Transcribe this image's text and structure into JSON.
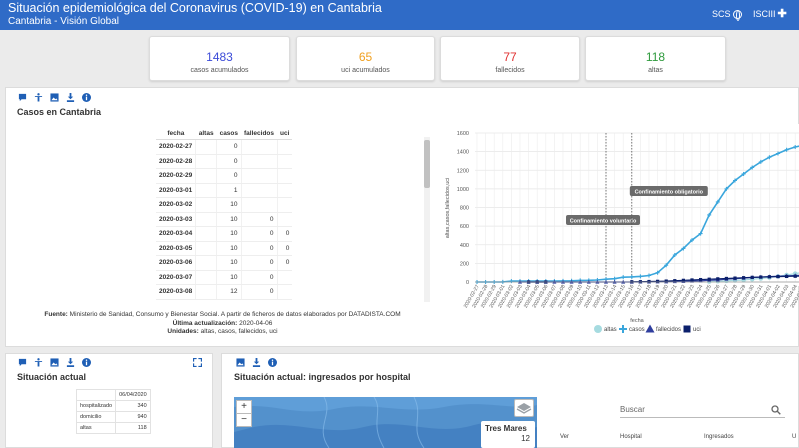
{
  "header": {
    "title": "Situación epidemiológica del Coronavirus (COVID-19) en Cantabria",
    "subtitle": "Cantabria - Visión Global",
    "links": [
      {
        "label": "SCS",
        "icon": "globe-icon"
      },
      {
        "label": "ISCIII",
        "icon": "plus-icon"
      }
    ],
    "color": "#2f6bc7"
  },
  "kpis": [
    {
      "value": "1483",
      "label": "casos acumulados",
      "color": "#3b4bd8"
    },
    {
      "value": "65",
      "label": "uci acumulados",
      "color": "#f0a020"
    },
    {
      "value": "77",
      "label": "fallecidos",
      "color": "#e03030"
    },
    {
      "value": "118",
      "label": "altas",
      "color": "#2e9a3c"
    }
  ],
  "panel_casos": {
    "title": "Casos en Cantabria",
    "icons": [
      "comment-icon",
      "accessibility-icon",
      "image-icon",
      "download-icon",
      "info-icon"
    ],
    "table": {
      "columns": [
        "fecha",
        "altas",
        "casos",
        "fallecidos",
        "uci"
      ],
      "rows": [
        [
          "2020-02-27",
          "",
          "0",
          "",
          ""
        ],
        [
          "2020-02-28",
          "",
          "0",
          "",
          ""
        ],
        [
          "2020-02-29",
          "",
          "0",
          "",
          ""
        ],
        [
          "2020-03-01",
          "",
          "1",
          "",
          ""
        ],
        [
          "2020-03-02",
          "",
          "10",
          "",
          ""
        ],
        [
          "2020-03-03",
          "",
          "10",
          "0",
          ""
        ],
        [
          "2020-03-04",
          "",
          "10",
          "0",
          "0"
        ],
        [
          "2020-03-05",
          "",
          "10",
          "0",
          "0"
        ],
        [
          "2020-03-06",
          "",
          "10",
          "0",
          "0"
        ],
        [
          "2020-03-07",
          "",
          "10",
          "0",
          ""
        ],
        [
          "2020-03-08",
          "",
          "12",
          "0",
          ""
        ]
      ]
    },
    "source": {
      "fuente_label": "Fuente:",
      "fuente": "Ministerio de Sanidad, Consumo y Bienestar Social. A partir de ficheros de datos elaborados por DATADISTA.COM",
      "actualizacion_label": "Última actualización:",
      "actualizacion": "2020-04-06",
      "unidades_label": "Unidades:",
      "unidades": "altas, casos, fallecidos, uci"
    }
  },
  "chart_data": {
    "type": "line",
    "xlabel": "fecha",
    "ylabel": "altas,casos,fallecidos,uci",
    "ylim": [
      0,
      1600
    ],
    "yticks": [
      0,
      200,
      400,
      600,
      800,
      1000,
      1200,
      1400,
      1600
    ],
    "grid": true,
    "legend_position": "bottom",
    "x": [
      "2020-02-27",
      "2020-02-28",
      "2020-02-29",
      "2020-03-01",
      "2020-03-02",
      "2020-03-03",
      "2020-03-04",
      "2020-03-05",
      "2020-03-06",
      "2020-03-07",
      "2020-03-08",
      "2020-03-09",
      "2020-03-10",
      "2020-03-11",
      "2020-03-12",
      "2020-03-13",
      "2020-03-14",
      "2020-03-15",
      "2020-03-16",
      "2020-03-17",
      "2020-03-18",
      "2020-03-19",
      "2020-03-20",
      "2020-03-21",
      "2020-03-22",
      "2020-03-23",
      "2020-03-24",
      "2020-03-25",
      "2020-03-26",
      "2020-03-27",
      "2020-03-28",
      "2020-03-29",
      "2020-03-30",
      "2020-03-31",
      "2020-04-01",
      "2020-04-02",
      "2020-04-03",
      "2020-04-04",
      "2020-04-05",
      "2020-04-06"
    ],
    "series": [
      {
        "name": "altas",
        "color": "#a6dbe0",
        "marker": "circle",
        "values": [
          null,
          null,
          null,
          null,
          null,
          null,
          null,
          null,
          null,
          null,
          null,
          null,
          null,
          null,
          null,
          null,
          null,
          null,
          null,
          null,
          null,
          null,
          null,
          null,
          null,
          null,
          null,
          4,
          8,
          12,
          17,
          22,
          30,
          38,
          48,
          60,
          75,
          90,
          105,
          118
        ]
      },
      {
        "name": "casos",
        "color": "#3aa6dc",
        "marker": "plus",
        "values": [
          0,
          0,
          0,
          1,
          10,
          10,
          10,
          10,
          10,
          10,
          12,
          13,
          17,
          18,
          22,
          30,
          35,
          52,
          55,
          60,
          70,
          100,
          180,
          290,
          360,
          450,
          520,
          720,
          860,
          1000,
          1090,
          1160,
          1230,
          1290,
          1340,
          1380,
          1420,
          1450,
          1470,
          1483
        ]
      },
      {
        "name": "fallecidos",
        "color": "#2f3e9e",
        "marker": "triangle",
        "values": [
          null,
          null,
          null,
          null,
          null,
          0,
          0,
          0,
          0,
          0,
          0,
          0,
          0,
          0,
          0,
          0,
          0,
          0,
          0,
          1,
          1,
          2,
          3,
          5,
          7,
          10,
          12,
          18,
          22,
          30,
          36,
          42,
          48,
          54,
          58,
          62,
          66,
          70,
          74,
          77
        ]
      },
      {
        "name": "uci",
        "color": "#0b1f6b",
        "marker": "square",
        "values": [
          null,
          null,
          null,
          null,
          null,
          null,
          0,
          0,
          0,
          null,
          null,
          null,
          null,
          null,
          null,
          null,
          null,
          null,
          2,
          3,
          5,
          7,
          10,
          14,
          18,
          22,
          26,
          30,
          34,
          38,
          42,
          46,
          50,
          53,
          56,
          58,
          60,
          62,
          64,
          65
        ]
      }
    ],
    "annotations": [
      {
        "label": "Confinamiento voluntario",
        "x": "2020-03-13"
      },
      {
        "label": "Confinamiento obligatorio",
        "x": "2020-03-16"
      }
    ]
  },
  "panel_actual": {
    "title": "Situación actual",
    "icons": [
      "comment-icon",
      "accessibility-icon",
      "image-icon",
      "download-icon",
      "info-icon"
    ],
    "expand_icon": "expand-icon",
    "table": {
      "date": "06/04/2020",
      "rows": [
        {
          "label": "hospitalizado",
          "value": "340"
        },
        {
          "label": "domicilio",
          "value": "940"
        },
        {
          "label": "altas",
          "value": "118"
        }
      ]
    }
  },
  "panel_hospital": {
    "title": "Situación actual: ingresados por hospital",
    "icons": [
      "image-icon",
      "download-icon",
      "info-icon"
    ],
    "map": {
      "zoom_in": "+",
      "zoom_out": "−",
      "popup_name": "Tres Mares",
      "popup_value": "12",
      "layers_icon": "layers-icon"
    },
    "search": {
      "placeholder": "Buscar",
      "icon": "search-icon"
    },
    "columns": [
      "Ver",
      "Hospital",
      "Ingresados",
      "U"
    ]
  }
}
